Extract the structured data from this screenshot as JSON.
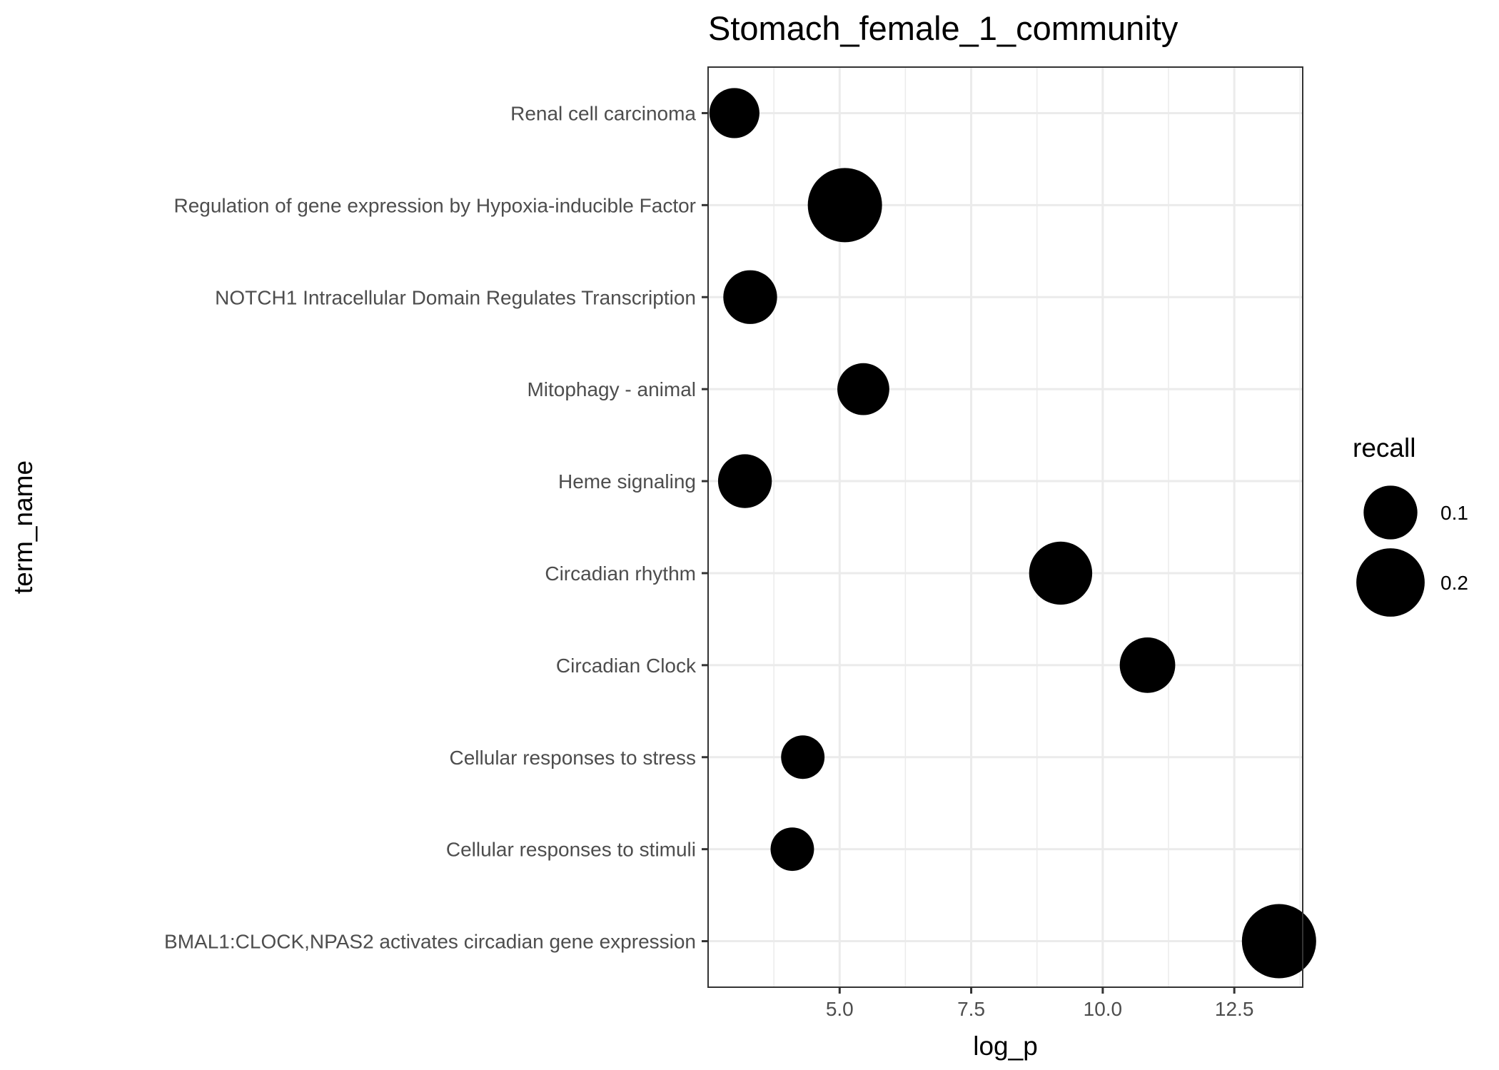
{
  "chart_data": {
    "type": "scatter",
    "title": "Stomach_female_1_community",
    "xlabel": "log_p",
    "ylabel": "term_name",
    "xlim": [
      2.5,
      13.8
    ],
    "xticks": [
      5.0,
      7.5,
      10.0,
      12.5
    ],
    "xtick_labels": [
      "5.0",
      "7.5",
      "10.0",
      "12.5"
    ],
    "grid": true,
    "legend": {
      "title": "recall",
      "placement": "right",
      "entries": [
        {
          "label": "0.1",
          "recall": 0.1
        },
        {
          "label": "0.2",
          "recall": 0.2
        }
      ]
    },
    "points": [
      {
        "term": "Renal cell carcinoma",
        "log_p": 3.0,
        "recall": 0.08
      },
      {
        "term": "Regulation of gene expression by Hypoxia-inducible Factor",
        "log_p": 5.1,
        "recall": 0.25
      },
      {
        "term": "NOTCH1 Intracellular Domain Regulates Transcription",
        "log_p": 3.3,
        "recall": 0.1
      },
      {
        "term": "Mitophagy - animal",
        "log_p": 5.45,
        "recall": 0.09
      },
      {
        "term": "Heme signaling",
        "log_p": 3.2,
        "recall": 0.1
      },
      {
        "term": "Circadian rhythm",
        "log_p": 9.2,
        "recall": 0.16
      },
      {
        "term": "Circadian Clock",
        "log_p": 10.85,
        "recall": 0.11
      },
      {
        "term": "Cellular responses to stress",
        "log_p": 4.3,
        "recall": 0.05
      },
      {
        "term": "Cellular responses to stimuli",
        "log_p": 4.1,
        "recall": 0.05
      },
      {
        "term": "BMAL1:CLOCK,NPAS2 activates circadian gene expression",
        "log_p": 13.35,
        "recall": 0.25
      }
    ],
    "colors": {
      "point": "#000000",
      "grid": "#ebebeb",
      "panel_border": "#333333",
      "tick_text": "#4d4d4d"
    }
  }
}
